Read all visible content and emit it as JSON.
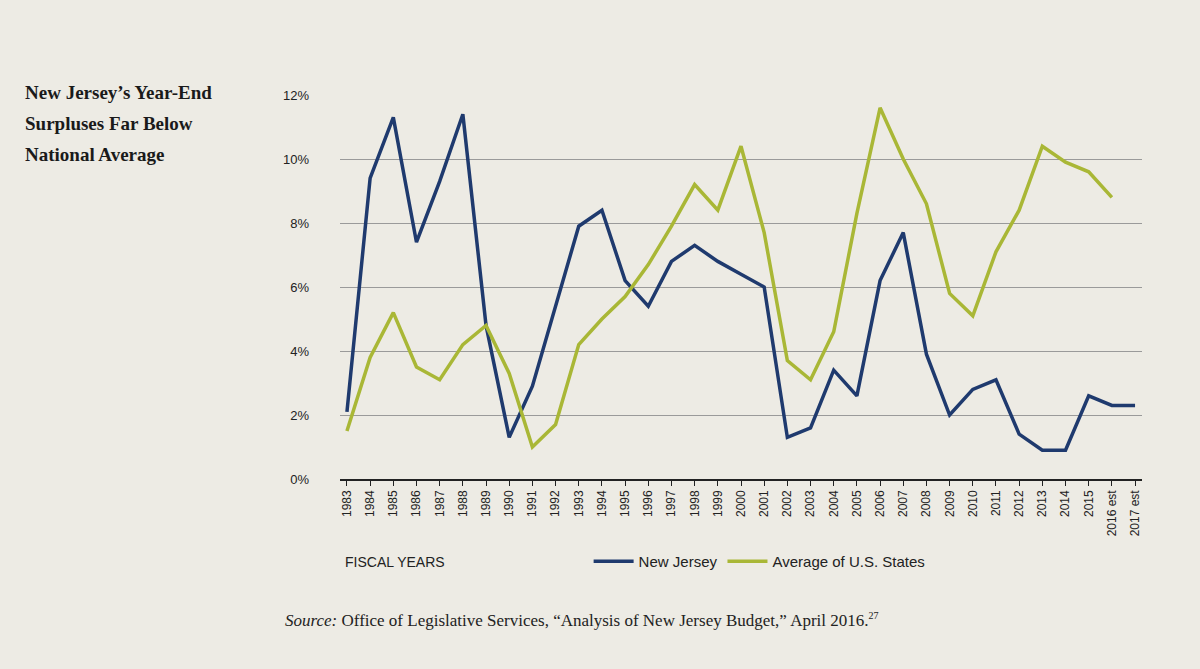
{
  "chart_data": {
    "type": "line",
    "title": "New Jersey’s Year-End Surpluses Far Below National Average",
    "x_label": "FISCAL YEARS",
    "source": {
      "label": "Source:",
      "text": "Office of Legislative Services, “Analysis of New Jersey Budget,” April 2016.",
      "note": "27"
    },
    "categories": [
      "1983",
      "1984",
      "1985",
      "1986",
      "1987",
      "1988",
      "1989",
      "1990",
      "1991",
      "1992",
      "1993",
      "1994",
      "1995",
      "1996",
      "1997",
      "1998",
      "1999",
      "2000",
      "2001",
      "2002",
      "2003",
      "2004",
      "2005",
      "2006",
      "2007",
      "2008",
      "2009",
      "2010",
      "2011",
      "2012",
      "2013",
      "2014",
      "2015",
      "2016 est",
      "2017 est"
    ],
    "series": [
      {
        "name": "New Jersey",
        "color": "#1f3a6e",
        "values": [
          2.1,
          9.4,
          11.3,
          7.4,
          9.3,
          11.4,
          4.8,
          1.3,
          2.9,
          5.4,
          7.9,
          8.4,
          6.2,
          5.4,
          6.8,
          7.3,
          6.8,
          6.4,
          6.0,
          1.3,
          1.6,
          3.4,
          2.6,
          6.2,
          7.7,
          3.9,
          2.0,
          2.8,
          3.1,
          1.4,
          0.9,
          0.9,
          2.6,
          2.3,
          2.3
        ]
      },
      {
        "name": "Average of U.S. States",
        "color": "#a9b736",
        "values": [
          1.5,
          3.8,
          5.2,
          3.5,
          3.1,
          4.2,
          4.8,
          3.3,
          1.0,
          1.7,
          4.2,
          5.0,
          5.7,
          6.7,
          7.9,
          9.2,
          8.4,
          10.4,
          7.7,
          3.7,
          3.1,
          4.6,
          8.3,
          11.6,
          10.0,
          8.6,
          5.8,
          5.1,
          7.1,
          8.4,
          10.4,
          9.9,
          9.6,
          8.8,
          null
        ]
      }
    ],
    "ylim": [
      0,
      12
    ],
    "yticks": [
      {
        "value": 0,
        "label": "0%"
      },
      {
        "value": 2,
        "label": "2%"
      },
      {
        "value": 4,
        "label": "4%"
      },
      {
        "value": 6,
        "label": "6%"
      },
      {
        "value": 8,
        "label": "8%"
      },
      {
        "value": 10,
        "label": "10%"
      },
      {
        "value": 12,
        "label": "12%"
      }
    ],
    "grid": true,
    "legend": "bottom"
  }
}
